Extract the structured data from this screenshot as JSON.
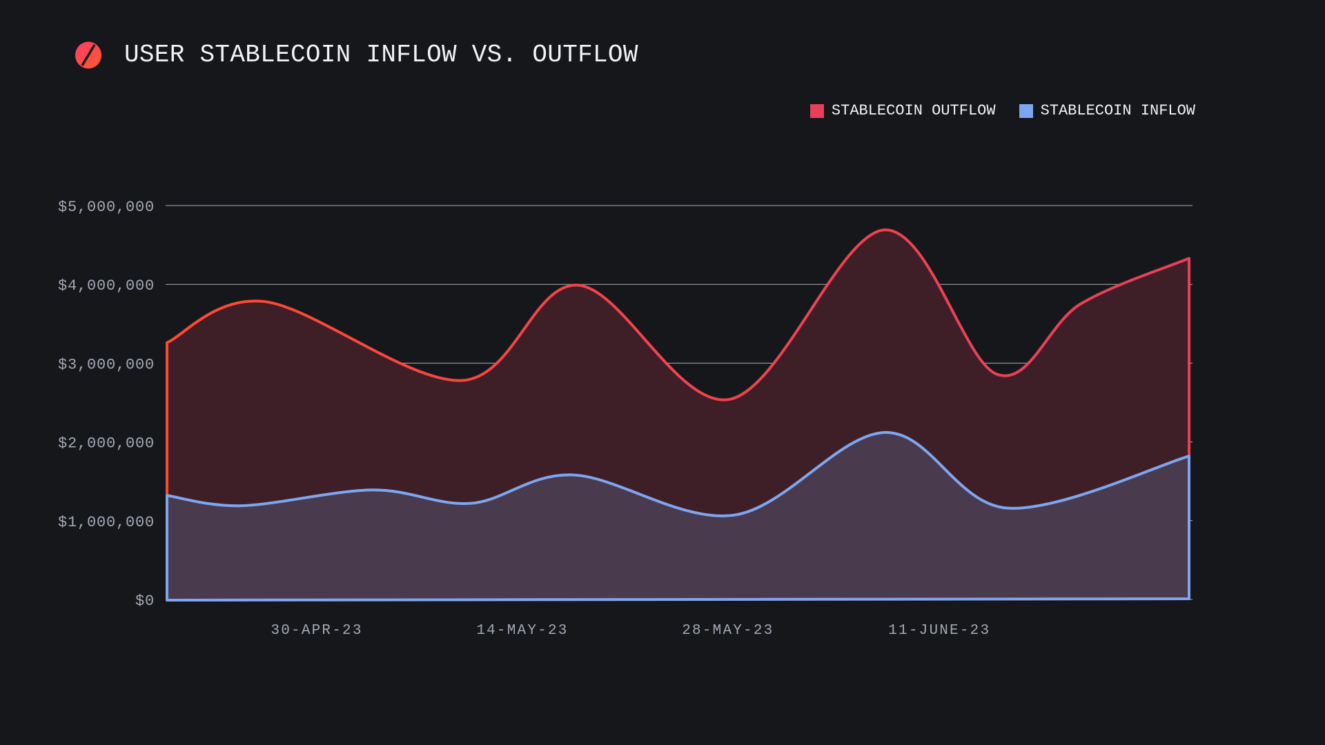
{
  "header": {
    "title": "USER STABLECOIN INFLOW VS. OUTFLOW",
    "icon": "no-entry-logo-icon"
  },
  "colors": {
    "background": "#16171b",
    "outflow": "#e8405a",
    "outflow_start": "#ff4a30",
    "inflow": "#7ea6f0",
    "outflow_fill": "#3f1f27",
    "inflow_fill": "#4a3a4e",
    "grid": "#c9c9d2"
  },
  "chart_data": {
    "type": "area",
    "title": "USER STABLECOIN INFLOW VS. OUTFLOW",
    "xlabel": "",
    "ylabel": "",
    "x_unit": "days since 20-Apr-23",
    "xlim": [
      0,
      69.6
    ],
    "ylim": [
      0,
      5000000
    ],
    "grid": true,
    "legend_position": "top-right",
    "yticks": [
      {
        "value": 0,
        "label": "$0"
      },
      {
        "value": 1000000,
        "label": "$1,000,000"
      },
      {
        "value": 2000000,
        "label": "$2,000,000"
      },
      {
        "value": 3000000,
        "label": "$3,000,000"
      },
      {
        "value": 4000000,
        "label": "$4,000,000"
      },
      {
        "value": 5000000,
        "label": "$5,000,000"
      }
    ],
    "xticks": [
      {
        "value": 10.2,
        "label": "30-APR-23"
      },
      {
        "value": 24.2,
        "label": "14-MAY-23"
      },
      {
        "value": 38.2,
        "label": "28-MAY-23"
      },
      {
        "value": 52.6,
        "label": "11-JUNE-23"
      }
    ],
    "series": [
      {
        "name": "STABLECOIN OUTFLOW",
        "key": "outflow",
        "x": [
          0,
          6.7,
          20.1,
          28.0,
          38.3,
          48.8,
          56.5,
          62.2,
          69.6
        ],
        "values": [
          3260000,
          3780000,
          2780000,
          3990000,
          2540000,
          4690000,
          2860000,
          3750000,
          4330000
        ]
      },
      {
        "name": "STABLECOIN INFLOW",
        "key": "inflow",
        "x": [
          0,
          5.1,
          14.0,
          20.7,
          27.7,
          38.6,
          48.9,
          57.2,
          69.6
        ],
        "values": [
          1320000,
          1190000,
          1390000,
          1220000,
          1580000,
          1070000,
          2120000,
          1160000,
          1820000
        ]
      }
    ]
  }
}
